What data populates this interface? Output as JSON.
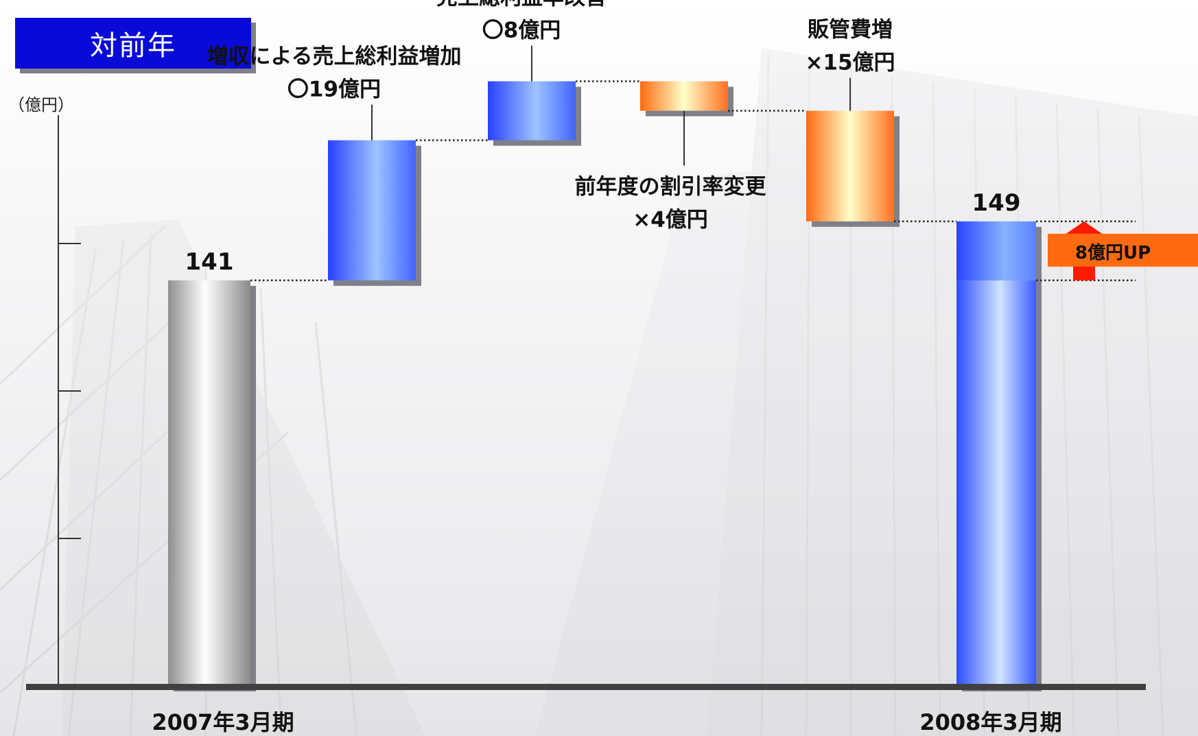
{
  "title": "対前年",
  "chart_data": {
    "type": "bar",
    "subtype": "waterfall",
    "unit": "（億円）",
    "ylim": [
      86,
      166
    ],
    "axis_ticks": [
      106,
      126,
      146
    ],
    "categories": [
      "2007年3月期",
      "2008年3月期"
    ],
    "start": {
      "category": "2007年3月期",
      "value": 141,
      "value_label": "141",
      "color": "#c8c8c8"
    },
    "steps": [
      {
        "label_lines": [
          "増収による売上総利益増加",
          "〇19億円"
        ],
        "delta": 19,
        "kind": "increase"
      },
      {
        "label_lines": [
          "売上総利益率改善",
          "〇8億円"
        ],
        "delta": 8,
        "kind": "increase"
      },
      {
        "label_lines": [
          "前年度の割引率変更",
          "×4億円"
        ],
        "delta": -4,
        "kind": "decrease"
      },
      {
        "label_lines": [
          "販管費増",
          "×15億円"
        ],
        "delta": -15,
        "kind": "decrease"
      }
    ],
    "end": {
      "category": "2008年3月期",
      "value": 149,
      "value_label": "149",
      "color": "#2b4cff"
    },
    "difference": {
      "label": "8億円UP",
      "value": 8,
      "arrow_color": "#ff1a00",
      "badge_color": "#ff6a10"
    },
    "colors": {
      "increase": "#2b4cff",
      "decrease": "#ff6a10",
      "axis": "#333333"
    },
    "grid": false,
    "legend": "none"
  }
}
